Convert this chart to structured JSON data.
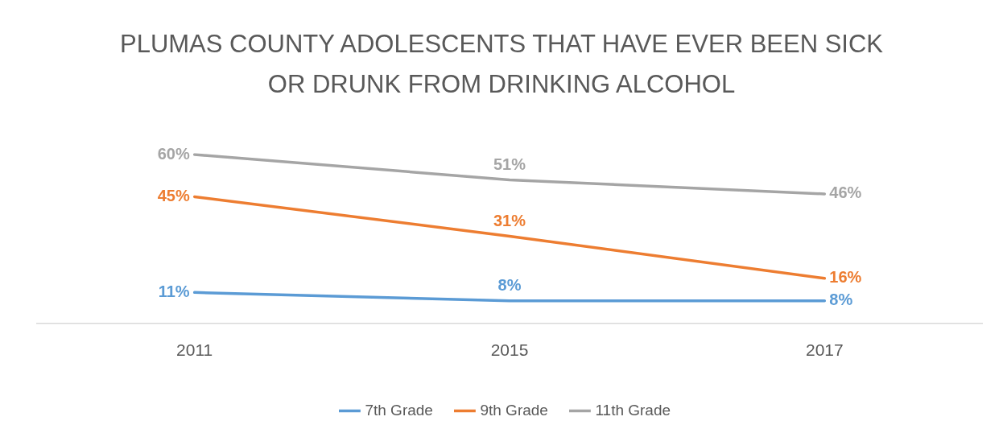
{
  "chart_data": {
    "type": "line",
    "title": "PLUMAS COUNTY ADOLESCENTS THAT HAVE EVER BEEN SICK OR DRUNK FROM DRINKING ALCOHOL",
    "relative": false,
    "categories": [
      "2011",
      "2015",
      "2017"
    ],
    "legend": "bottom",
    "grid": false,
    "line_style": "solid",
    "series": [
      {
        "name": "7th Grade",
        "color": "#5b9bd5",
        "values": [
          11,
          8,
          8
        ],
        "value_labels": [
          "11%",
          "8%",
          "8%"
        ]
      },
      {
        "name": "9th Grade",
        "color": "#ed7d31",
        "values": [
          45,
          31,
          16
        ],
        "value_labels": [
          "45%",
          "31%",
          "16%"
        ]
      },
      {
        "name": "11th Grade",
        "color": "#a5a5a5",
        "values": [
          60,
          51,
          46
        ],
        "value_labels": [
          "60%",
          "51%",
          "46%"
        ]
      }
    ]
  }
}
